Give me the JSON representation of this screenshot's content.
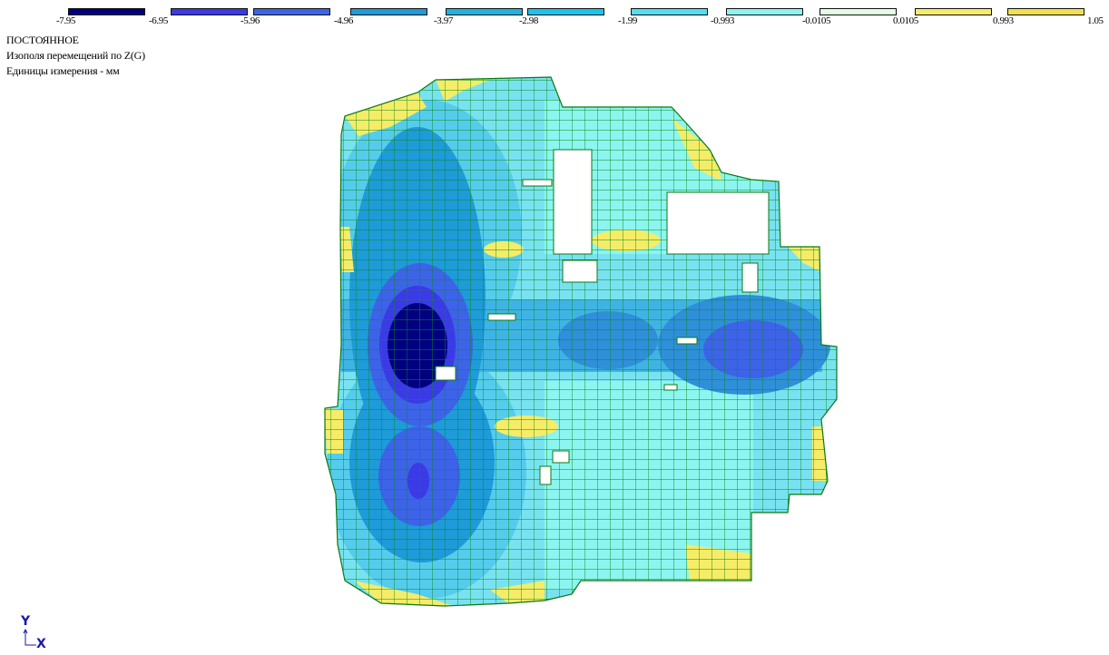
{
  "legend": {
    "ticks": [
      "-7.95",
      "-6.95",
      "-5.96",
      "-4.96",
      "-3.97",
      "-2.98",
      "-1.99",
      "-0.993",
      "-0.0105",
      "0.0105",
      "0.993",
      "1.05"
    ],
    "colors": [
      "#000080",
      "#3a3ae6",
      "#3d63e8",
      "#1e9bd8",
      "#20b2e0",
      "#18c5ee",
      "#55ddf2",
      "#8cf5ef",
      "#e4fbe6",
      "#f5ec68",
      "#f0e050"
    ]
  },
  "info": {
    "load_case": "ПОСТОЯННОЕ",
    "field": "Изополя  перемещений по Z(G)",
    "units": "Единицы измерения - мм"
  },
  "axes": {
    "y_label": "Y",
    "x_label": "X"
  },
  "mesh_color": "#008a00",
  "plate_base_color": "#79e2f0"
}
